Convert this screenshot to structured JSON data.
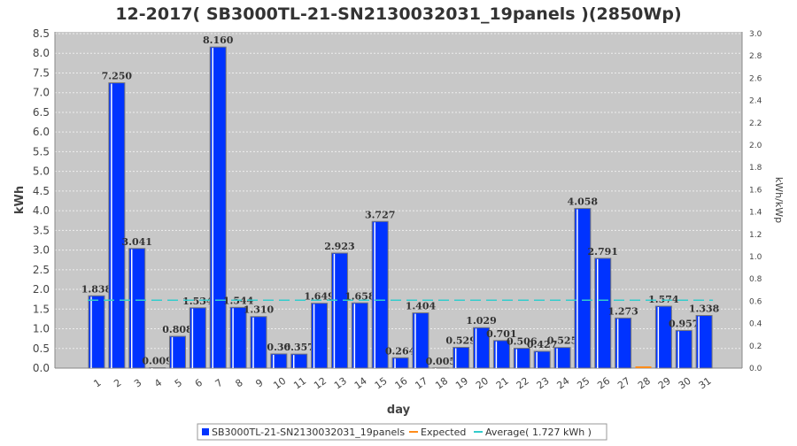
{
  "chart_data": {
    "type": "bar",
    "title": "12-2017( SB3000TL-21-SN2130032031_19panels )(2850Wp)",
    "xlabel": "day",
    "ylabel": "kWh",
    "y2label": "kWh/kWp",
    "ylim": [
      0,
      8.5
    ],
    "y2lim": [
      0,
      3.0
    ],
    "yticks": [
      "0.0",
      "0.5",
      "1.0",
      "1.5",
      "2.0",
      "2.5",
      "3.0",
      "3.5",
      "4.0",
      "4.5",
      "5.0",
      "5.5",
      "6.0",
      "6.5",
      "7.0",
      "7.5",
      "8.0",
      "8.5"
    ],
    "y2ticks": [
      "0.0",
      "0.2",
      "0.4",
      "0.6",
      "0.8",
      "1.0",
      "1.2",
      "1.4",
      "1.6",
      "1.8",
      "2.0",
      "2.2",
      "2.4",
      "2.6",
      "2.8",
      "3.0"
    ],
    "categories": [
      "1",
      "2",
      "3",
      "4",
      "5",
      "6",
      "7",
      "8",
      "9",
      "10",
      "11",
      "12",
      "13",
      "14",
      "15",
      "16",
      "17",
      "18",
      "19",
      "20",
      "21",
      "22",
      "23",
      "24",
      "25",
      "26",
      "27",
      "28",
      "29",
      "30",
      "31"
    ],
    "values": [
      1.838,
      7.25,
      3.041,
      0.009,
      0.808,
      1.534,
      8.16,
      1.544,
      1.31,
      0.361,
      0.357,
      1.649,
      2.923,
      1.658,
      3.727,
      0.264,
      1.404,
      0.005,
      0.529,
      1.029,
      0.701,
      0.506,
      0.427,
      0.525,
      4.058,
      2.791,
      1.273,
      0,
      1.574,
      0.957,
      1.338
    ],
    "labels": [
      "1.838",
      "7.250",
      "3.041",
      "0.009",
      "0.808",
      "1.534",
      "8.160",
      "1.544",
      "1.310",
      "0.36",
      "0.357",
      "1.649",
      "2.923",
      "1.658",
      "3.727",
      "0.264",
      "1.404",
      "0.005",
      "0.529",
      "1.029",
      "0.701",
      "0.506",
      "0.427",
      "0.525",
      "4.058",
      "2.791",
      "1.273",
      "",
      "1.574",
      "0.957",
      "1.338"
    ],
    "average": 1.727,
    "grid": true,
    "legend_position": "bottom",
    "legend": [
      "SB3000TL-21-SN2130032031_19panels",
      "Expected",
      "Average( 1.727 kWh )"
    ],
    "colors": {
      "bar": "#0033ff",
      "expected": "#ff8c1a",
      "average": "#33cccc",
      "plot_bg": "#c8c8c8"
    }
  }
}
